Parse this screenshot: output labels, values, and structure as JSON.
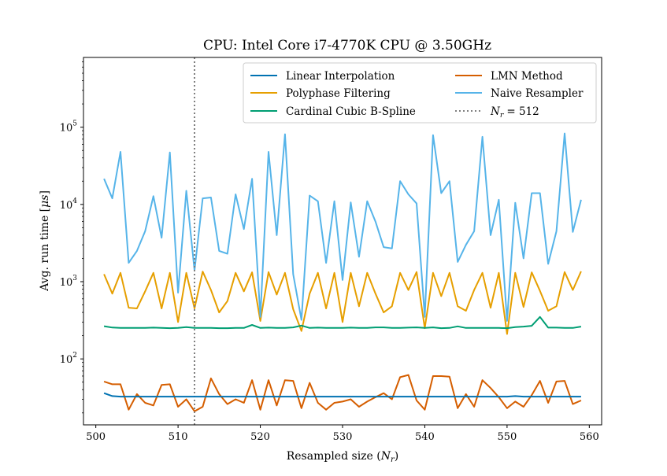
{
  "chart_data": {
    "type": "line",
    "title": "CPU: Intel Core i7-4770K CPU @ 3.50GHz",
    "xlabel": "Resampled size (",
    "xlabel_var": "N",
    "xlabel_sub": "r",
    "xlabel_end": ")",
    "ylabel": "Avg. run time [",
    "ylabel_mu": "μs",
    "ylabel_end": "]",
    "xlim": [
      498.5,
      561.5
    ],
    "ylim": [
      14,
      800000
    ],
    "yscale": "log",
    "xticks": [
      500,
      510,
      520,
      530,
      540,
      550,
      560
    ],
    "yticks": [
      {
        "value": 100,
        "base": "10",
        "exp": "2"
      },
      {
        "value": 1000,
        "base": "10",
        "exp": "3"
      },
      {
        "value": 10000,
        "base": "10",
        "exp": "4"
      },
      {
        "value": 100000,
        "base": "10",
        "exp": "5"
      }
    ],
    "x": [
      501,
      502,
      503,
      504,
      505,
      506,
      507,
      508,
      509,
      510,
      511,
      512,
      513,
      514,
      515,
      516,
      517,
      518,
      519,
      520,
      521,
      522,
      523,
      524,
      525,
      526,
      527,
      528,
      529,
      530,
      531,
      532,
      533,
      534,
      535,
      536,
      537,
      538,
      539,
      540,
      541,
      542,
      543,
      544,
      545,
      546,
      547,
      548,
      549,
      550,
      551,
      552,
      553,
      554,
      555,
      556,
      557,
      558,
      559
    ],
    "series": [
      {
        "name": "Linear Interpolation",
        "color": "#0072b2",
        "style": "solid",
        "values": [
          36,
          33,
          32.5,
          32.5,
          32.5,
          32.5,
          32.5,
          32.5,
          32.5,
          32.5,
          32.5,
          32.5,
          32.5,
          32.5,
          32.5,
          32.5,
          32.5,
          32.5,
          32.5,
          32.5,
          32.5,
          32.5,
          32.5,
          32.5,
          32.5,
          32.5,
          32.5,
          32.5,
          32.5,
          32.5,
          32.5,
          32.5,
          32.5,
          32.5,
          32.5,
          32.5,
          32.5,
          32.5,
          32.5,
          32.5,
          32.5,
          32.5,
          32.5,
          32.5,
          32.5,
          32.5,
          32.5,
          32.5,
          32.5,
          32.5,
          33,
          32.5,
          32.5,
          32.5,
          32.5,
          32.5,
          32.5,
          32.5,
          32.5
        ]
      },
      {
        "name": "Polyphase Filtering",
        "color": "#e69f00",
        "style": "solid",
        "values": [
          1250,
          700,
          1300,
          460,
          450,
          750,
          1300,
          450,
          1300,
          300,
          1300,
          450,
          1350,
          780,
          400,
          560,
          1300,
          750,
          1320,
          310,
          1330,
          680,
          1300,
          440,
          230,
          700,
          1300,
          450,
          1300,
          300,
          1300,
          480,
          1300,
          700,
          400,
          480,
          1300,
          780,
          1330,
          250,
          1300,
          650,
          1300,
          480,
          420,
          780,
          1300,
          460,
          1300,
          210,
          1300,
          470,
          1320,
          760,
          420,
          480,
          1330,
          780,
          1360
        ]
      },
      {
        "name": "Cardinal Cubic B-Spline",
        "color": "#009e73",
        "style": "solid",
        "values": [
          265,
          255,
          252,
          252,
          252,
          252,
          254,
          252,
          250,
          252,
          258,
          252,
          252,
          252,
          250,
          250,
          252,
          252,
          275,
          252,
          254,
          252,
          252,
          256,
          270,
          252,
          254,
          252,
          252,
          252,
          254,
          252,
          252,
          256,
          256,
          252,
          252,
          254,
          256,
          252,
          256,
          250,
          252,
          264,
          252,
          252,
          252,
          252,
          252,
          250,
          258,
          262,
          268,
          350,
          254,
          254,
          252,
          252,
          262
        ]
      },
      {
        "name": "LMN Method",
        "color": "#d55e00",
        "style": "solid",
        "values": [
          51,
          47,
          47,
          22,
          35,
          27,
          25,
          46,
          47,
          24,
          30,
          21,
          24,
          56,
          35,
          26,
          30,
          27,
          53,
          22,
          53,
          25,
          53,
          52,
          23,
          49,
          27,
          22,
          27,
          28,
          30,
          24,
          28,
          32,
          36,
          30,
          58,
          62,
          29,
          22,
          60,
          60,
          59,
          23,
          35,
          24,
          53,
          42,
          32,
          23,
          28,
          24,
          34,
          52,
          27,
          51,
          52,
          26,
          29
        ]
      },
      {
        "name": "Naive Resampler",
        "color": "#56b4e9",
        "style": "solid",
        "values": [
          21500,
          12000,
          48000,
          1750,
          2500,
          4500,
          12800,
          3700,
          47000,
          720,
          15000,
          1400,
          12000,
          12300,
          2500,
          2300,
          13500,
          4800,
          21500,
          350,
          48000,
          4000,
          81000,
          1250,
          320,
          13000,
          11000,
          1750,
          11000,
          1050,
          10600,
          2100,
          11000,
          6000,
          2800,
          2700,
          20000,
          13500,
          10300,
          350,
          79000,
          14000,
          20000,
          1800,
          3000,
          4500,
          75000,
          4000,
          11500,
          310,
          10500,
          2000,
          14000,
          14000,
          1700,
          4500,
          83000,
          4400,
          11500
        ]
      },
      {
        "name": "N_r = 512",
        "color": "#7f7f7f",
        "style": "dotted",
        "vline_x": 512
      }
    ],
    "legend": {
      "placement": "top-right",
      "columns": 2,
      "entries": [
        {
          "label": "Linear Interpolation",
          "color": "#0072b2",
          "style": "solid"
        },
        {
          "label": "LMN Method",
          "color": "#d55e00",
          "style": "solid"
        },
        {
          "label": "Polyphase Filtering",
          "color": "#e69f00",
          "style": "solid"
        },
        {
          "label": "Naive Resampler",
          "color": "#56b4e9",
          "style": "solid"
        },
        {
          "label": "Cardinal Cubic B-Spline",
          "color": "#009e73",
          "style": "solid"
        },
        {
          "label": "= 512",
          "var": "N",
          "sub": "r",
          "color": "#7f7f7f",
          "style": "dotted"
        }
      ]
    }
  }
}
